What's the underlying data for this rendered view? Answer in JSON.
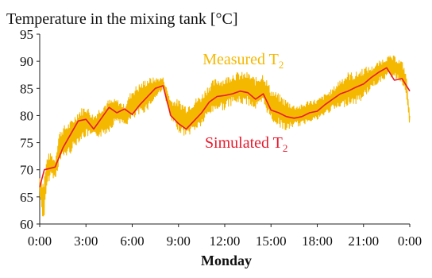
{
  "chart_data": {
    "type": "line",
    "title": "Temperature in the mixing tank [°C]",
    "xlabel": "Monday",
    "ylabel": "",
    "x_unit": "hours",
    "xlim": [
      0,
      24
    ],
    "ylim": [
      60,
      95
    ],
    "y_ticks": [
      60,
      65,
      70,
      75,
      80,
      85,
      90,
      95
    ],
    "x_ticks": [
      0,
      3,
      6,
      9,
      12,
      15,
      18,
      21,
      24
    ],
    "x_tick_labels": [
      "0:00",
      "3:00",
      "6:00",
      "9:00",
      "12:00",
      "15:00",
      "18:00",
      "21:00",
      "0:00"
    ],
    "grid": false,
    "legend": "none",
    "annotations": [
      {
        "series": "measured",
        "text_main": "Measured T",
        "text_sub": "2",
        "color": "#f5b800"
      },
      {
        "series": "simulated",
        "text_main": "Simulated T",
        "text_sub": "2",
        "color": "#e8192c"
      }
    ],
    "series": [
      {
        "name": "Measured T2",
        "key": "measured",
        "color": "#f5b800",
        "x": [
          0.0,
          0.25,
          0.5,
          0.75,
          1.0,
          1.25,
          1.5,
          2.0,
          2.5,
          3.0,
          3.5,
          4.0,
          4.5,
          5.0,
          5.5,
          6.0,
          6.5,
          7.0,
          7.5,
          8.0,
          8.5,
          9.0,
          9.5,
          10.0,
          10.5,
          11.0,
          11.5,
          12.0,
          12.5,
          13.0,
          13.5,
          14.0,
          14.5,
          15.0,
          15.5,
          16.0,
          16.5,
          17.0,
          17.5,
          18.0,
          18.5,
          19.0,
          19.5,
          20.0,
          20.5,
          21.0,
          21.5,
          22.0,
          22.5,
          23.0,
          23.5,
          23.75,
          24.0
        ],
        "y": [
          67,
          64,
          70,
          71,
          70,
          74,
          75,
          76,
          78,
          79,
          78,
          79,
          80,
          81,
          80,
          82,
          83,
          84,
          85,
          86,
          81,
          80,
          79,
          80,
          81,
          83,
          84,
          84,
          85,
          85,
          85,
          84,
          85,
          82,
          81,
          80,
          80,
          80,
          81,
          81,
          82,
          83,
          84,
          85,
          85,
          86,
          87,
          88,
          89,
          89,
          88,
          86,
          79
        ],
        "amplitude": [
          2,
          4,
          3,
          2,
          2,
          3,
          3,
          3,
          3,
          3,
          2,
          3,
          3,
          2,
          2,
          3,
          3,
          3,
          2,
          1,
          2,
          3,
          3,
          3,
          3,
          3,
          3,
          3,
          3,
          3,
          3,
          3,
          3,
          3,
          3,
          3,
          2,
          2,
          2,
          2,
          2,
          2,
          3,
          3,
          3,
          3,
          2,
          2,
          2,
          2,
          2,
          2,
          1
        ]
      },
      {
        "name": "Simulated T2",
        "key": "simulated",
        "color": "#e8192c",
        "x": [
          0.0,
          0.3,
          0.6,
          1.0,
          1.5,
          2.0,
          2.5,
          3.0,
          3.5,
          4.0,
          4.5,
          5.0,
          5.5,
          6.0,
          6.5,
          7.0,
          7.5,
          8.0,
          8.5,
          9.0,
          9.5,
          10.0,
          10.5,
          11.0,
          11.5,
          12.0,
          12.5,
          13.0,
          13.5,
          14.0,
          14.5,
          15.0,
          15.5,
          16.0,
          16.5,
          17.0,
          17.5,
          18.0,
          18.5,
          19.0,
          19.5,
          20.0,
          20.5,
          21.0,
          21.5,
          22.0,
          22.5,
          23.0,
          23.5,
          24.0
        ],
        "y": [
          66.8,
          70,
          70.2,
          70.5,
          74,
          76.5,
          79,
          79.3,
          77.5,
          79.5,
          81.5,
          80.5,
          81.2,
          80.2,
          82,
          83.5,
          85,
          85.5,
          80,
          78.5,
          77.5,
          79,
          80.5,
          82.5,
          83.5,
          83.7,
          84,
          84.5,
          84.2,
          83,
          84,
          81,
          80.5,
          79.8,
          79.5,
          79.8,
          80.5,
          80.8,
          82,
          83,
          84,
          84.5,
          85.2,
          85.8,
          87,
          88,
          88.8,
          86.5,
          86.8,
          84.5
        ]
      }
    ]
  }
}
